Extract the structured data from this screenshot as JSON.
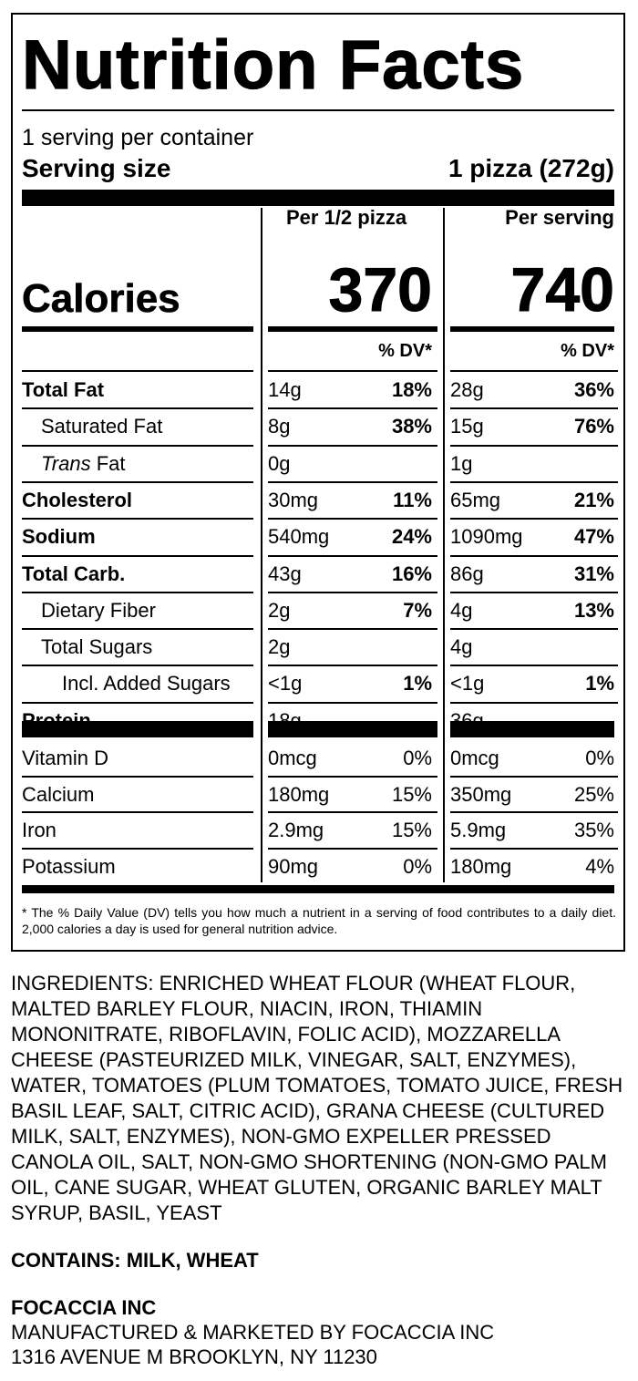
{
  "label": {
    "title": "Nutrition Facts",
    "servings_per_container": "1 serving per container",
    "serving_size_label": "Serving size",
    "serving_size_value": "1 pizza (272g)",
    "col1_header": "Per 1/2 pizza",
    "col2_header": "Per serving",
    "calories_label": "Calories",
    "calories_col1": "370",
    "calories_col2": "740",
    "dv_header": "% DV*",
    "rows": [
      {
        "name": "Total Fat",
        "a1": "14g",
        "p1": "18%",
        "a2": "28g",
        "p2": "36%"
      },
      {
        "name": "Saturated Fat",
        "a1": "8g",
        "p1": "38%",
        "a2": "15g",
        "p2": "76%"
      },
      {
        "name_italic": "Trans",
        "name_rest": " Fat",
        "a1": "0g",
        "p1": "",
        "a2": "1g",
        "p2": ""
      },
      {
        "name": "Cholesterol",
        "a1": "30mg",
        "p1": "11%",
        "a2": "65mg",
        "p2": "21%"
      },
      {
        "name": "Sodium",
        "a1": "540mg",
        "p1": "24%",
        "a2": "1090mg",
        "p2": "47%"
      },
      {
        "name": "Total Carb.",
        "a1": "43g",
        "p1": "16%",
        "a2": "86g",
        "p2": "31%"
      },
      {
        "name": "Dietary Fiber",
        "a1": "2g",
        "p1": "7%",
        "a2": "4g",
        "p2": "13%"
      },
      {
        "name": "Total Sugars",
        "a1": "2g",
        "p1": "",
        "a2": "4g",
        "p2": ""
      },
      {
        "name": "Incl. Added Sugars",
        "a1": "<1g",
        "p1": "1%",
        "a2": "<1g",
        "p2": "1%"
      },
      {
        "name": "Protein",
        "a1": "18g",
        "p1": "",
        "a2": "36g",
        "p2": ""
      }
    ],
    "micros": [
      {
        "name": "Vitamin D",
        "a1": "0mcg",
        "p1": "0%",
        "a2": "0mcg",
        "p2": "0%"
      },
      {
        "name": "Calcium",
        "a1": "180mg",
        "p1": "15%",
        "a2": "350mg",
        "p2": "25%"
      },
      {
        "name": "Iron",
        "a1": "2.9mg",
        "p1": "15%",
        "a2": "5.9mg",
        "p2": "35%"
      },
      {
        "name": "Potassium",
        "a1": "90mg",
        "p1": "0%",
        "a2": "180mg",
        "p2": "4%"
      }
    ],
    "footnote": "* The % Daily Value (DV) tells you how much a nutrient in a serving of food contributes to a daily diet. 2,000 calories a day is used for general nutrition advice."
  },
  "ingredients": "INGREDIENTS: ENRICHED WHEAT FLOUR (WHEAT FLOUR, MALTED BARLEY FLOUR, NIACIN, IRON, THIAMIN MONONITRATE, RIBOFLAVIN, FOLIC ACID), MOZZARELLA CHEESE (PASTEURIZED MILK, VINEGAR, SALT, ENZYMES), WATER, TOMATOES (PLUM TOMATOES, TOMATO JUICE, FRESH BASIL LEAF, SALT, CITRIC ACID), GRANA CHEESE (CULTURED MILK, SALT, ENZYMES), NON-GMO EXPELLER PRESSED CANOLA OIL, SALT, NON-GMO SHORTENING (NON-GMO PALM OIL, CANE SUGAR, WHEAT GLUTEN, ORGANIC BARLEY MALT SYRUP, BASIL, YEAST",
  "contains": "CONTAINS: MILK, WHEAT",
  "manufacturer": {
    "name": "FOCACCIA INC",
    "line1": "MANUFACTURED & MARKETED BY FOCACCIA INC",
    "line2": "1316 AVENUE M BROOKLYN, NY 11230"
  }
}
